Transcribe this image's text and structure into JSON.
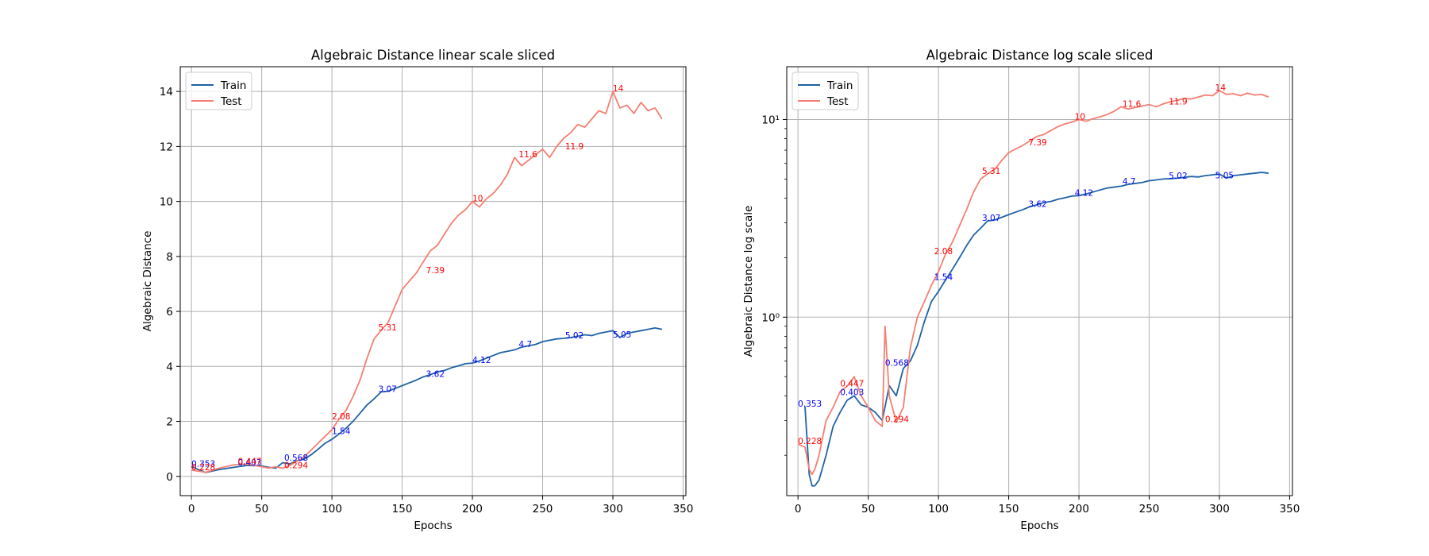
{
  "chart_data": [
    {
      "type": "line",
      "title": "Algebraic Distance linear scale sliced",
      "xlabel": "Epochs",
      "ylabel": "Algebraic Distance",
      "xlim": [
        -8,
        352
      ],
      "ylim": [
        -0.7,
        14.9
      ],
      "yscale": "linear",
      "xticks": [
        0,
        50,
        100,
        150,
        200,
        250,
        300,
        350
      ],
      "yticks": [
        0,
        2,
        4,
        6,
        8,
        10,
        12,
        14
      ],
      "grid": true,
      "legend_position": "top-left",
      "series": [
        {
          "name": "Train",
          "color": "#1f63a5",
          "x": [
            0,
            10,
            20,
            30,
            40,
            50,
            55,
            60,
            65,
            70,
            75,
            80,
            85,
            90,
            95,
            100,
            105,
            110,
            115,
            120,
            125,
            130,
            135,
            140,
            145,
            150,
            155,
            160,
            165,
            170,
            175,
            180,
            185,
            190,
            195,
            200,
            205,
            210,
            215,
            220,
            225,
            230,
            235,
            240,
            245,
            250,
            255,
            260,
            265,
            270,
            275,
            280,
            285,
            290,
            295,
            300,
            305,
            310,
            315,
            320,
            325,
            330,
            335
          ],
          "y": [
            0.353,
            0.14,
            0.25,
            0.33,
            0.4,
            0.38,
            0.33,
            0.3,
            0.5,
            0.45,
            0.57,
            0.62,
            0.78,
            0.98,
            1.2,
            1.35,
            1.54,
            1.75,
            2.0,
            2.3,
            2.6,
            2.82,
            3.07,
            3.1,
            3.2,
            3.3,
            3.4,
            3.5,
            3.62,
            3.7,
            3.8,
            3.85,
            3.95,
            4.02,
            4.1,
            4.12,
            4.2,
            4.3,
            4.4,
            4.5,
            4.55,
            4.6,
            4.7,
            4.75,
            4.8,
            4.9,
            4.95,
            5.0,
            5.02,
            5.05,
            5.1,
            5.15,
            5.12,
            5.2,
            5.25,
            5.3,
            5.05,
            5.2,
            5.25,
            5.3,
            5.35,
            5.4,
            5.35
          ]
        },
        {
          "name": "Test",
          "color": "#f47f72",
          "x": [
            0,
            10,
            20,
            30,
            40,
            50,
            55,
            60,
            65,
            70,
            75,
            80,
            85,
            90,
            95,
            100,
            105,
            110,
            115,
            120,
            125,
            130,
            135,
            140,
            145,
            150,
            155,
            160,
            165,
            170,
            175,
            180,
            185,
            190,
            195,
            200,
            205,
            210,
            215,
            220,
            225,
            230,
            235,
            240,
            245,
            250,
            255,
            260,
            265,
            270,
            275,
            280,
            285,
            290,
            295,
            300,
            305,
            310,
            315,
            320,
            325,
            330,
            335
          ],
          "y": [
            0.228,
            0.15,
            0.3,
            0.42,
            0.447,
            0.35,
            0.3,
            0.35,
            0.294,
            0.4,
            0.55,
            0.7,
            0.95,
            1.2,
            1.45,
            1.7,
            2.08,
            2.4,
            2.9,
            3.5,
            4.3,
            5.0,
            5.31,
            5.6,
            6.2,
            6.8,
            7.1,
            7.39,
            7.8,
            8.2,
            8.4,
            8.8,
            9.2,
            9.5,
            9.7,
            10.0,
            9.8,
            10.1,
            10.3,
            10.6,
            11.0,
            11.6,
            11.3,
            11.5,
            11.7,
            11.9,
            11.6,
            12.0,
            12.3,
            12.5,
            12.8,
            12.7,
            13.0,
            13.3,
            13.2,
            14.0,
            13.4,
            13.5,
            13.2,
            13.6,
            13.3,
            13.4,
            13.0
          ]
        }
      ],
      "annotations": [
        {
          "x": 0,
          "y": 0.353,
          "text": "0.353",
          "series": "Train"
        },
        {
          "x": 33,
          "y": 0.403,
          "text": "0.403",
          "series": "Train"
        },
        {
          "x": 66,
          "y": 0.568,
          "text": "0.568",
          "series": "Train"
        },
        {
          "x": 100,
          "y": 1.54,
          "text": "1.54",
          "series": "Train"
        },
        {
          "x": 133,
          "y": 3.07,
          "text": "3.07",
          "series": "Train"
        },
        {
          "x": 167,
          "y": 3.62,
          "text": "3.62",
          "series": "Train"
        },
        {
          "x": 200,
          "y": 4.12,
          "text": "4.12",
          "series": "Train"
        },
        {
          "x": 233,
          "y": 4.7,
          "text": "4.7",
          "series": "Train"
        },
        {
          "x": 266,
          "y": 5.02,
          "text": "5.02",
          "series": "Train"
        },
        {
          "x": 300,
          "y": 5.05,
          "text": "5.05",
          "series": "Train"
        },
        {
          "x": 0,
          "y": 0.228,
          "text": "0.228",
          "series": "Test"
        },
        {
          "x": 33,
          "y": 0.447,
          "text": "0.447",
          "series": "Test"
        },
        {
          "x": 66,
          "y": 0.294,
          "text": "0.294",
          "series": "Test"
        },
        {
          "x": 100,
          "y": 2.08,
          "text": "2.08",
          "series": "Test"
        },
        {
          "x": 133,
          "y": 5.31,
          "text": "5.31",
          "series": "Test"
        },
        {
          "x": 167,
          "y": 7.39,
          "text": "7.39",
          "series": "Test"
        },
        {
          "x": 200,
          "y": 10.0,
          "text": "10",
          "series": "Test"
        },
        {
          "x": 233,
          "y": 11.6,
          "text": "11.6",
          "series": "Test"
        },
        {
          "x": 266,
          "y": 11.9,
          "text": "11.9",
          "series": "Test"
        },
        {
          "x": 300,
          "y": 14.0,
          "text": "14",
          "series": "Test"
        }
      ]
    },
    {
      "type": "line",
      "title": "Algebraic Distance log scale sliced",
      "xlabel": "Epochs",
      "ylabel": "Algebraic Distance log scale",
      "xlim": [
        -8,
        352
      ],
      "ylim": [
        0.125,
        18.5
      ],
      "yscale": "log",
      "xticks": [
        0,
        50,
        100,
        150,
        200,
        250,
        300,
        350
      ],
      "yticks": [
        1,
        10
      ],
      "ytick_labels": [
        "10⁰",
        "10¹"
      ],
      "grid": true,
      "legend_position": "top-left",
      "series": [
        {
          "name": "Train",
          "color": "#1f63a5",
          "x": [
            5,
            8,
            10,
            12,
            15,
            20,
            25,
            30,
            35,
            40,
            45,
            50,
            55,
            60,
            65,
            70,
            75,
            80,
            85,
            90,
            95,
            100,
            105,
            110,
            115,
            120,
            125,
            130,
            135,
            140,
            145,
            150,
            155,
            160,
            165,
            170,
            175,
            180,
            185,
            190,
            195,
            200,
            205,
            210,
            215,
            220,
            225,
            230,
            235,
            240,
            245,
            250,
            255,
            260,
            265,
            270,
            275,
            280,
            285,
            290,
            295,
            300,
            305,
            310,
            315,
            320,
            325,
            330,
            335
          ],
          "y": [
            0.353,
            0.16,
            0.14,
            0.14,
            0.15,
            0.2,
            0.28,
            0.33,
            0.38,
            0.4,
            0.36,
            0.35,
            0.33,
            0.3,
            0.45,
            0.4,
            0.55,
            0.6,
            0.72,
            0.95,
            1.2,
            1.35,
            1.54,
            1.75,
            2.0,
            2.3,
            2.6,
            2.82,
            3.07,
            3.1,
            3.2,
            3.3,
            3.4,
            3.5,
            3.62,
            3.7,
            3.8,
            3.85,
            3.95,
            4.02,
            4.1,
            4.12,
            4.2,
            4.3,
            4.4,
            4.5,
            4.55,
            4.6,
            4.7,
            4.75,
            4.8,
            4.9,
            4.95,
            5.0,
            5.02,
            5.05,
            5.1,
            5.15,
            5.12,
            5.2,
            5.25,
            5.3,
            5.05,
            5.2,
            5.25,
            5.3,
            5.35,
            5.4,
            5.35
          ]
        },
        {
          "name": "Test",
          "color": "#f47f72",
          "x": [
            0,
            5,
            8,
            10,
            12,
            15,
            20,
            25,
            30,
            35,
            40,
            45,
            50,
            55,
            60,
            62,
            65,
            70,
            75,
            80,
            85,
            90,
            95,
            100,
            105,
            110,
            115,
            120,
            125,
            130,
            135,
            140,
            145,
            150,
            155,
            160,
            165,
            170,
            175,
            180,
            185,
            190,
            195,
            200,
            205,
            210,
            215,
            220,
            225,
            230,
            235,
            240,
            245,
            250,
            255,
            260,
            265,
            270,
            275,
            280,
            285,
            290,
            295,
            300,
            305,
            310,
            315,
            320,
            325,
            330,
            335
          ],
          "y": [
            0.228,
            0.22,
            0.17,
            0.16,
            0.17,
            0.2,
            0.3,
            0.35,
            0.42,
            0.447,
            0.5,
            0.4,
            0.35,
            0.3,
            0.28,
            0.9,
            0.4,
            0.294,
            0.35,
            0.7,
            1.0,
            1.2,
            1.45,
            1.7,
            2.08,
            2.4,
            2.9,
            3.5,
            4.3,
            5.0,
            5.31,
            5.6,
            6.2,
            6.8,
            7.1,
            7.39,
            7.8,
            8.2,
            8.4,
            8.8,
            9.2,
            9.5,
            9.7,
            10.0,
            9.8,
            10.1,
            10.3,
            10.6,
            11.0,
            11.6,
            11.3,
            11.5,
            11.7,
            11.9,
            11.6,
            12.0,
            12.3,
            12.5,
            12.8,
            12.7,
            13.0,
            13.3,
            13.2,
            14.0,
            13.4,
            13.5,
            13.2,
            13.6,
            13.3,
            13.4,
            13.0
          ]
        }
      ],
      "annotations": [
        {
          "x": 0,
          "y": 0.353,
          "text": "0.353",
          "series": "Train"
        },
        {
          "x": 30,
          "y": 0.403,
          "text": "0.403",
          "series": "Train"
        },
        {
          "x": 62,
          "y": 0.568,
          "text": "0.568",
          "series": "Train"
        },
        {
          "x": 97,
          "y": 1.54,
          "text": "1.54",
          "series": "Train"
        },
        {
          "x": 131,
          "y": 3.07,
          "text": "3.07",
          "series": "Train"
        },
        {
          "x": 164,
          "y": 3.62,
          "text": "3.62",
          "series": "Train"
        },
        {
          "x": 197,
          "y": 4.12,
          "text": "4.12",
          "series": "Train"
        },
        {
          "x": 231,
          "y": 4.7,
          "text": "4.7",
          "series": "Train"
        },
        {
          "x": 264,
          "y": 5.02,
          "text": "5.02",
          "series": "Train"
        },
        {
          "x": 297,
          "y": 5.05,
          "text": "5.05",
          "series": "Train"
        },
        {
          "x": 0,
          "y": 0.228,
          "text": "0.228",
          "series": "Test"
        },
        {
          "x": 30,
          "y": 0.447,
          "text": "0.447",
          "series": "Test"
        },
        {
          "x": 62,
          "y": 0.294,
          "text": "0.294",
          "series": "Test"
        },
        {
          "x": 97,
          "y": 2.08,
          "text": "2.08",
          "series": "Test"
        },
        {
          "x": 131,
          "y": 5.31,
          "text": "5.31",
          "series": "Test"
        },
        {
          "x": 164,
          "y": 7.39,
          "text": "7.39",
          "series": "Test"
        },
        {
          "x": 197,
          "y": 10.0,
          "text": "10",
          "series": "Test"
        },
        {
          "x": 231,
          "y": 11.6,
          "text": "11.6",
          "series": "Test"
        },
        {
          "x": 264,
          "y": 11.9,
          "text": "11.9",
          "series": "Test"
        },
        {
          "x": 297,
          "y": 14.0,
          "text": "14",
          "series": "Test"
        }
      ]
    }
  ]
}
